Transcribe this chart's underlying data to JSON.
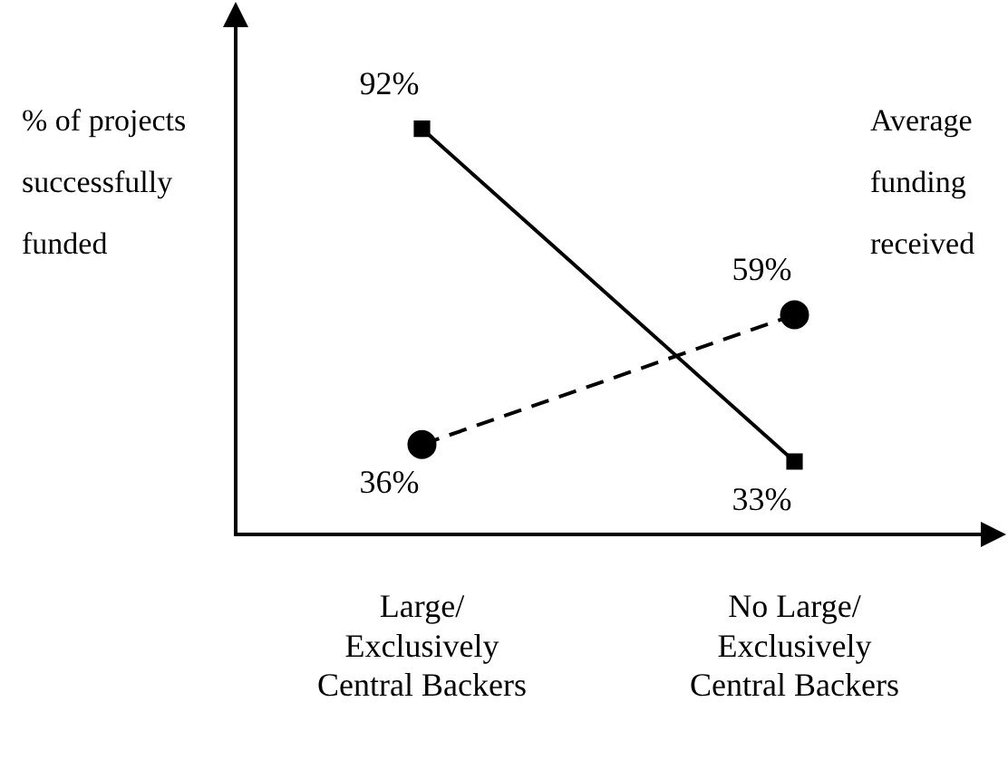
{
  "chart_data": {
    "type": "line",
    "ylabel": "% of projects successfully funded",
    "y2label": "Average funding received",
    "categories": [
      "Large/\nExclusively\nCentral Backers",
      "No Large/\nExclusively\nCentral Backers"
    ],
    "tick_labels": "x",
    "legend": false,
    "grid": false,
    "series": [
      {
        "type": "line",
        "color": "#000000",
        "marker": "square",
        "line_style": "solid",
        "values": [
          92,
          33
        ],
        "value_labels": [
          "92%",
          "33%"
        ]
      },
      {
        "type": "line",
        "color": "#000000",
        "marker": "circle",
        "line_style": "dashed",
        "values": [
          36,
          59
        ],
        "value_labels": [
          "36%",
          "59%"
        ]
      }
    ]
  }
}
